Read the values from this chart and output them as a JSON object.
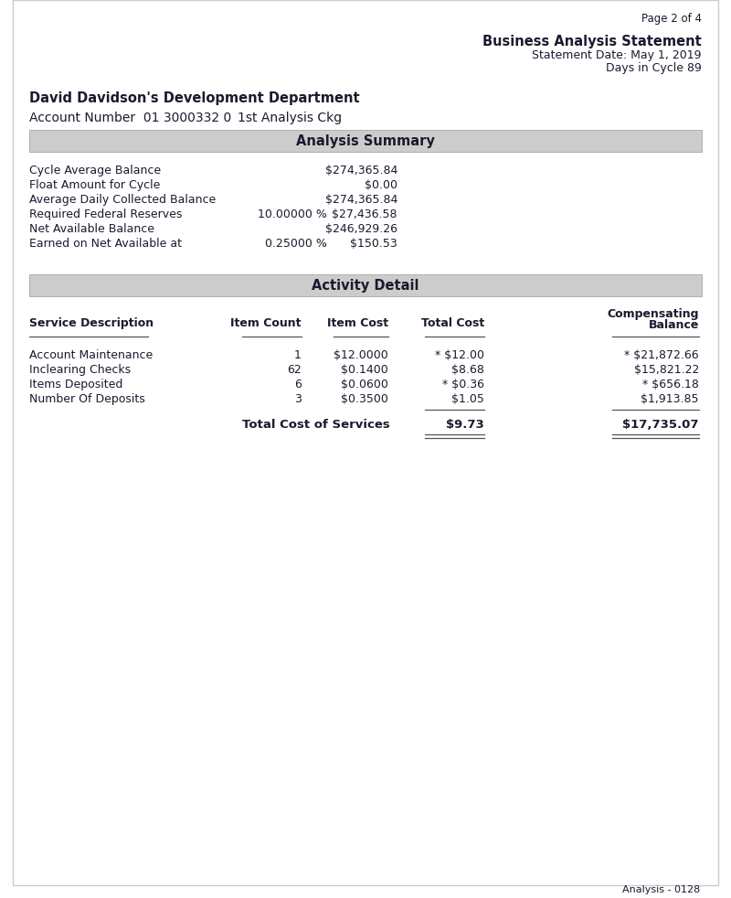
{
  "page_num": "Page 2 of 4",
  "header_title": "Business Analysis Statement",
  "statement_date": "Statement Date: May 1, 2019",
  "days_in_cycle": "Days in Cycle 89",
  "company_name": "David Davidson's Development Department",
  "account_number": "Account Number  01 3000332 0",
  "account_type": "1st Analysis Ckg",
  "section1_header": "Analysis Summary",
  "summary_rows": [
    {
      "label": "Cycle Average Balance",
      "pct": "",
      "value": "$274,365.84"
    },
    {
      "label": "Float Amount for Cycle",
      "pct": "",
      "value": "$0.00"
    },
    {
      "label": "Average Daily Collected Balance",
      "pct": "",
      "value": "$274,365.84"
    },
    {
      "label": "Required Federal Reserves",
      "pct": "10.00000 %",
      "value": "$27,436.58"
    },
    {
      "label": "Net Available Balance",
      "pct": "",
      "value": "$246,929.26"
    },
    {
      "label": "Earned on Net Available at",
      "pct": "0.25000 %",
      "value": "$150.53"
    }
  ],
  "section2_header": "Activity Detail",
  "col_hdr_desc": "Service Description",
  "col_hdr_count": "Item Count",
  "col_hdr_cost": "Item Cost",
  "col_hdr_total": "Total Cost",
  "col_hdr_comp1": "Compensating",
  "col_hdr_comp2": "Balance",
  "activity_rows": [
    {
      "desc": "Account Maintenance",
      "count": "1",
      "cost": "$12.0000",
      "total": "* $12.00",
      "comp": "* $21,872.66"
    },
    {
      "desc": "Inclearing Checks",
      "count": "62",
      "cost": "$0.1400",
      "total": "$8.68",
      "comp": "$15,821.22"
    },
    {
      "desc": "Items Deposited",
      "count": "6",
      "cost": "$0.0600",
      "total": "* $0.36",
      "comp": "* $656.18"
    },
    {
      "desc": "Number Of Deposits",
      "count": "3",
      "cost": "$0.3500",
      "total": "$1.05",
      "comp": "$1,913.85"
    }
  ],
  "total_label": "Total Cost of Services",
  "total_cost": "$9.73",
  "total_comp": "$17,735.07",
  "footer": "Analysis - 0128",
  "bg_color": "#ffffff",
  "text_color": "#1a1a2e",
  "section_bg": "#cccccc",
  "line_color": "#555555"
}
